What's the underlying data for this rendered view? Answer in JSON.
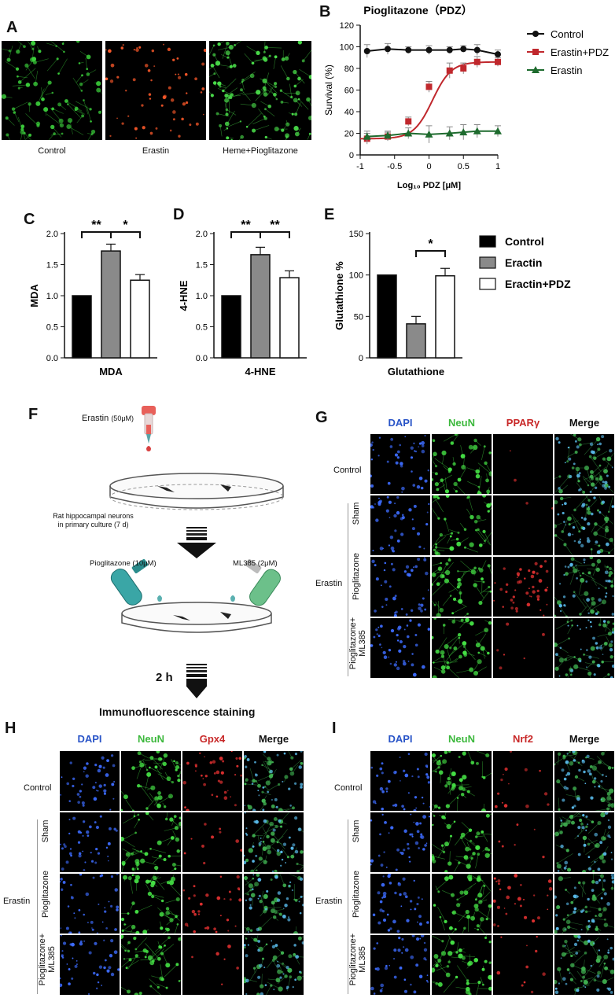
{
  "panels": {
    "A": {
      "label": "A",
      "captions": [
        "Control",
        "Erastin",
        "Heme+Pioglitazone"
      ]
    },
    "B": {
      "label": "B"
    },
    "C": {
      "label": "C"
    },
    "D": {
      "label": "D"
    },
    "E": {
      "label": "E"
    },
    "F": {
      "label": "F",
      "erastin": "Erastin",
      "erastin_dose": "(50μM)",
      "neurons_line1": "Rat hippocampal neurons",
      "neurons_line2": "in primary culture (7 d)",
      "pioglitazone": "Pioglitazone",
      "pioglitazone_dose": "(10μM)",
      "ml385": "ML385",
      "ml385_dose": "(2μM)",
      "time": "2 h",
      "result": "Immunofluorescence staining"
    },
    "G": {
      "label": "G",
      "headers": [
        "DAPI",
        "NeuN",
        "PPARγ",
        "Merge"
      ]
    },
    "H": {
      "label": "H",
      "headers": [
        "DAPI",
        "NeuN",
        "Gpx4",
        "Merge"
      ]
    },
    "I": {
      "label": "I",
      "headers": [
        "DAPI",
        "NeuN",
        "Nrf2",
        "Merge"
      ]
    }
  },
  "rows": {
    "control": "Control",
    "erastin": "Erastin",
    "sham": "Sham",
    "pioglitazone": "Pioglitazone",
    "combo_line1": "Pioglitazone+",
    "combo_line2": "ML385"
  },
  "colors": {
    "dapi": "#2a55c8",
    "neun": "#3cb83c",
    "ppar": "#c82828",
    "merge": "#111111",
    "control": "#000000",
    "erastin_bar": "#8a8a8a",
    "pdz_bar": "#ffffff",
    "curve_control": "#111111",
    "curve_erastin_pdz": "#c0282d",
    "curve_erastin": "#1e6b2e"
  },
  "chart_data": [
    {
      "id": "B",
      "type": "line",
      "title": "Pioglitazone（PDZ）",
      "xlabel": "Log₁₀ PDZ [μM]",
      "ylabel": "Survival (%)",
      "xlim": [
        -1,
        1
      ],
      "ylim": [
        0,
        120
      ],
      "xticks": [
        "-1",
        "-0.5",
        "0",
        "0.5",
        "1"
      ],
      "yticks": [
        "0",
        "20",
        "40",
        "60",
        "80",
        "100",
        "120"
      ],
      "legend_position": "right",
      "x": [
        -0.9,
        -0.6,
        -0.3,
        0,
        0.3,
        0.5,
        0.7,
        1.0
      ],
      "series": [
        {
          "name": "Control",
          "marker": "circle",
          "values": [
            96,
            98,
            97,
            97,
            97,
            98,
            97,
            93
          ],
          "err": [
            6,
            5,
            3,
            4,
            3,
            3,
            5,
            4
          ]
        },
        {
          "name": "Erastin+PDZ",
          "marker": "square",
          "values": [
            15,
            17,
            31,
            63,
            78,
            80,
            86,
            86
          ],
          "err": [
            5,
            4,
            4,
            5,
            7,
            5,
            5,
            4
          ]
        },
        {
          "name": "Erastin",
          "marker": "triangle",
          "values": [
            17,
            18,
            20,
            19,
            20,
            21,
            22,
            22
          ],
          "err": [
            5,
            4,
            5,
            8,
            6,
            7,
            6,
            5
          ]
        }
      ]
    },
    {
      "id": "C",
      "type": "bar",
      "ylabel": "MDA",
      "xlabel": "MDA",
      "ylim": [
        0,
        2.0
      ],
      "yticks": [
        "0.0",
        "0.5",
        "1.0",
        "1.5",
        "2.0"
      ],
      "values": [
        1.0,
        1.72,
        1.25
      ],
      "err": [
        0,
        0.11,
        0.09
      ],
      "significance": [
        {
          "from": 0,
          "to": 1,
          "label": "**"
        },
        {
          "from": 1,
          "to": 2,
          "label": "*"
        }
      ]
    },
    {
      "id": "D",
      "type": "bar",
      "ylabel": "4-HNE",
      "xlabel": "4-HNE",
      "ylim": [
        0,
        2.0
      ],
      "yticks": [
        "0.0",
        "0.5",
        "1.0",
        "1.5",
        "2.0"
      ],
      "values": [
        1.0,
        1.66,
        1.29
      ],
      "err": [
        0,
        0.12,
        0.11
      ],
      "significance": [
        {
          "from": 0,
          "to": 1,
          "label": "**"
        },
        {
          "from": 1,
          "to": 2,
          "label": "**"
        }
      ]
    },
    {
      "id": "E",
      "type": "bar",
      "ylabel": "Glutathione %",
      "xlabel": "Glutathione",
      "ylim": [
        0,
        150
      ],
      "yticks": [
        "0",
        "50",
        "100",
        "150"
      ],
      "values": [
        100,
        41,
        99
      ],
      "err": [
        0,
        9,
        9
      ],
      "significance": [
        {
          "from": 1,
          "to": 2,
          "label": "*"
        }
      ],
      "legend": [
        "Control",
        "Eractin",
        "Eractin+PDZ"
      ]
    }
  ]
}
